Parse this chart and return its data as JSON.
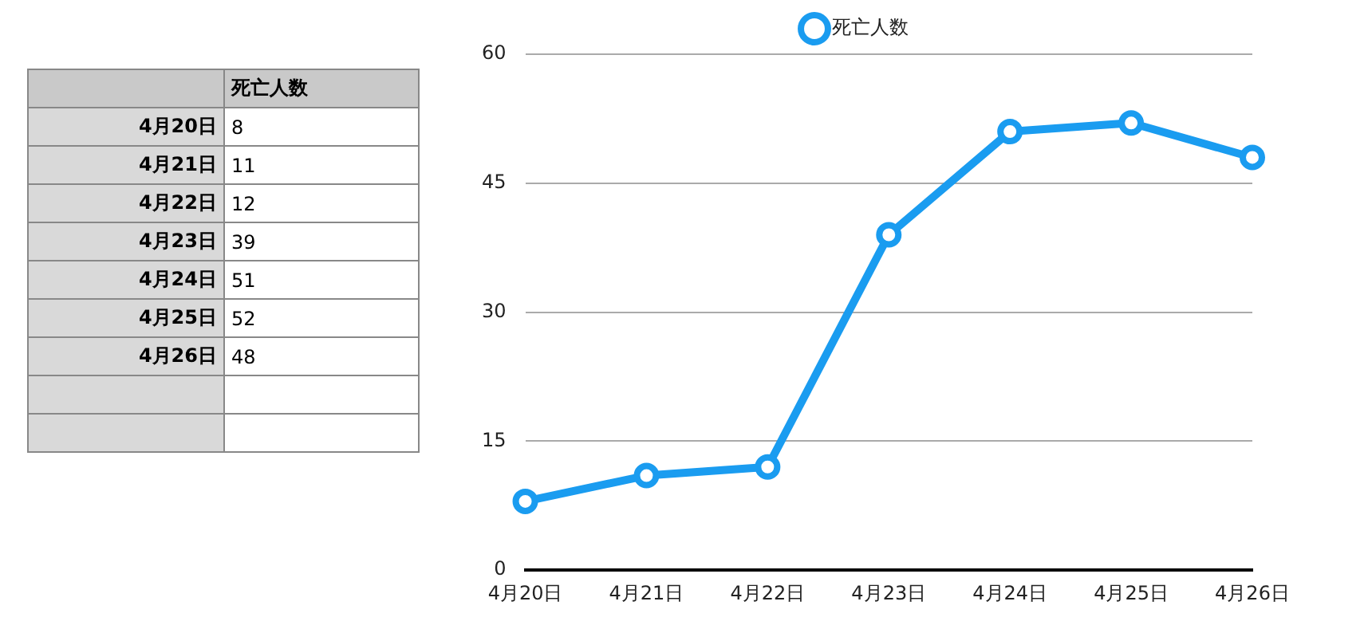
{
  "chart_data": [
    {
      "type": "heatmap",
      "categories": [
        "死亡人数"
      ],
      "y_categories": [
        "4月20日",
        "4月21日",
        "4月22日",
        "4月23日",
        "4月24日",
        "4月25日",
        "4月26日"
      ],
      "cells": [
        [
          8
        ],
        [
          11
        ],
        [
          12
        ],
        [
          39
        ],
        [
          51
        ],
        [
          52
        ],
        [
          48
        ]
      ],
      "data_labels": true
    },
    {
      "type": "line",
      "categories": [
        "4月20日",
        "4月21日",
        "4月22日",
        "4月23日",
        "4月24日",
        "4月25日",
        "4月26日"
      ],
      "series": [
        {
          "name": "死亡人数",
          "color": "#1a9cf0",
          "values": [
            8,
            11,
            12,
            39,
            51,
            52,
            48
          ]
        }
      ],
      "ylim": [
        0,
        60
      ],
      "yticks": [
        0,
        15,
        30,
        45,
        60
      ],
      "grid": "y",
      "legend": "top",
      "marker": "circle",
      "line_style": "solid"
    }
  ]
}
